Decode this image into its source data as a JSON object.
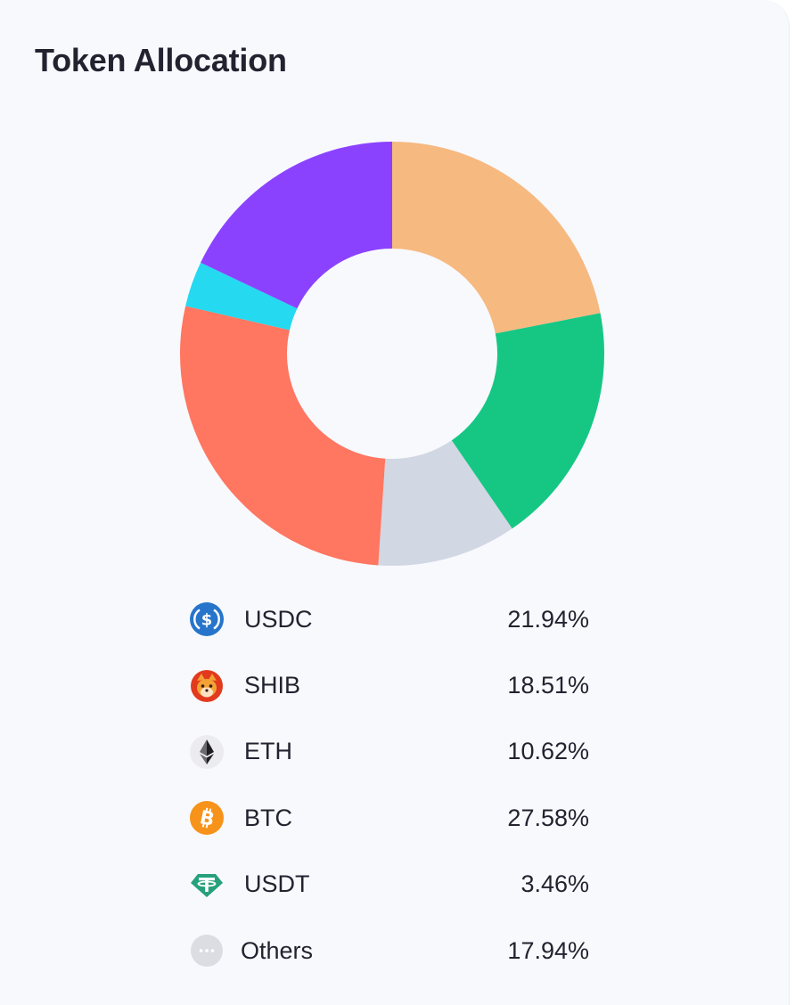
{
  "card": {
    "title": "Token Allocation"
  },
  "chart_data": {
    "type": "pie",
    "style": "donut",
    "categories": [
      "USDC",
      "SHIB",
      "ETH",
      "BTC",
      "USDT",
      "Others"
    ],
    "values": [
      21.94,
      18.51,
      10.62,
      27.58,
      3.46,
      17.94
    ],
    "unit": "%",
    "colors": [
      "#f6b980",
      "#16c784",
      "#d1d7e3",
      "#ff7661",
      "#24d9f0",
      "#8b42ff"
    ],
    "legend_position": "bottom",
    "title": "Token Allocation"
  },
  "legend": {
    "items": [
      {
        "name": "USDC",
        "value": "21.94%",
        "icon": "usdc-icon"
      },
      {
        "name": "SHIB",
        "value": "18.51%",
        "icon": "shib-icon"
      },
      {
        "name": "ETH",
        "value": "10.62%",
        "icon": "eth-icon"
      },
      {
        "name": "BTC",
        "value": "27.58%",
        "icon": "btc-icon"
      },
      {
        "name": "USDT",
        "value": "3.46%",
        "icon": "usdt-icon"
      },
      {
        "name": "Others",
        "value": "17.94%",
        "icon": "others-icon"
      }
    ]
  }
}
